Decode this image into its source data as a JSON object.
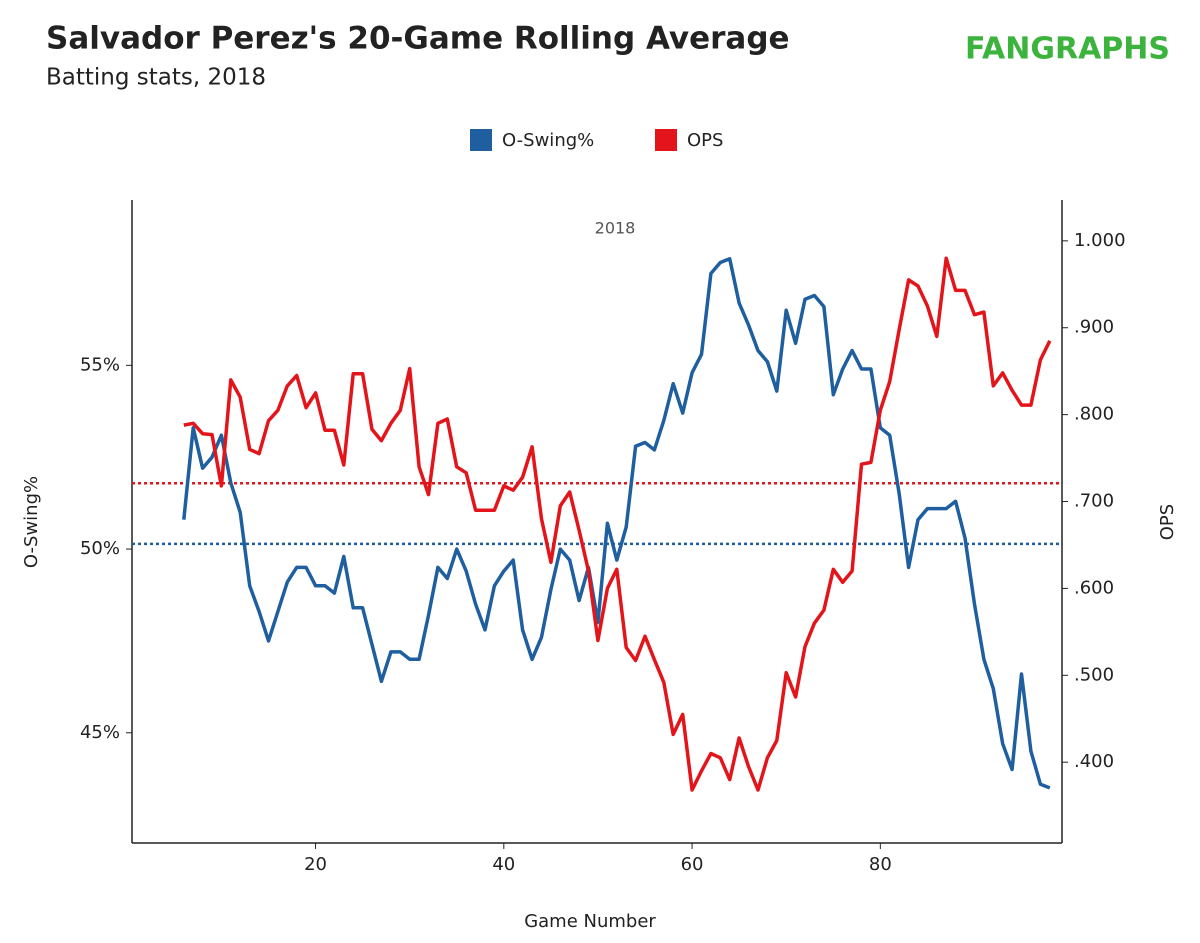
{
  "chart_data": {
    "type": "line",
    "title": "Salvador Perez's 20-Game Rolling Average",
    "subtitle": "Batting stats, 2018",
    "logo": "FANGRAPHS",
    "annotation": "2018",
    "x_label": "Game Number",
    "y_label": "O-Swing%",
    "y2_label": "OPS",
    "x": [
      6,
      7,
      8,
      9,
      10,
      11,
      12,
      13,
      14,
      15,
      16,
      17,
      18,
      19,
      20,
      21,
      22,
      23,
      24,
      25,
      26,
      27,
      28,
      29,
      30,
      31,
      32,
      33,
      34,
      35,
      36,
      37,
      38,
      39,
      40,
      41,
      42,
      43,
      44,
      45,
      46,
      47,
      48,
      49,
      50,
      51,
      52,
      53,
      54,
      55,
      56,
      57,
      58,
      59,
      60,
      61,
      62,
      63,
      64,
      65,
      66,
      67,
      68,
      69,
      70,
      71,
      72,
      73,
      74,
      75,
      76,
      77,
      78,
      79,
      80,
      81,
      82,
      83,
      84,
      85,
      86,
      87,
      88,
      89,
      90,
      91,
      92,
      93,
      94,
      95,
      96,
      97,
      98
    ],
    "series": [
      {
        "name": "O-Swing%",
        "color": "#1f5f9f",
        "axis": "y",
        "values": [
          50.8,
          53.3,
          52.2,
          52.5,
          53.1,
          51.8,
          51.0,
          49.0,
          48.3,
          47.5,
          48.3,
          49.1,
          49.5,
          49.5,
          49.0,
          49.0,
          48.8,
          49.8,
          48.4,
          48.4,
          47.4,
          46.4,
          47.2,
          47.2,
          47.0,
          47.0,
          48.2,
          49.5,
          49.2,
          50.0,
          49.4,
          48.5,
          47.8,
          49.0,
          49.4,
          49.7,
          47.8,
          47.0,
          47.6,
          48.9,
          50.0,
          49.7,
          48.6,
          49.5,
          48.0,
          50.7,
          49.7,
          50.6,
          52.8,
          52.9,
          52.7,
          53.5,
          54.5,
          53.7,
          54.8,
          55.3,
          57.5,
          57.8,
          57.9,
          56.7,
          56.1,
          55.4,
          55.1,
          54.3,
          56.5,
          55.6,
          56.8,
          56.9,
          56.6,
          54.2,
          54.9,
          55.4,
          54.9,
          54.9,
          53.3,
          53.1,
          51.5,
          49.5,
          50.8,
          51.1,
          51.1,
          51.1,
          51.3,
          50.3,
          48.5,
          47.0,
          46.2,
          44.7,
          44.0,
          46.6,
          44.5,
          43.6,
          43.5
        ]
      },
      {
        "name": "OPS",
        "color": "#e3151b",
        "axis": "y2",
        "values": [
          0.788,
          0.79,
          0.778,
          0.777,
          0.718,
          0.84,
          0.82,
          0.76,
          0.755,
          0.793,
          0.805,
          0.833,
          0.845,
          0.808,
          0.825,
          0.782,
          0.782,
          0.742,
          0.847,
          0.847,
          0.783,
          0.77,
          0.79,
          0.805,
          0.853,
          0.74,
          0.708,
          0.79,
          0.795,
          0.74,
          0.733,
          0.69,
          0.69,
          0.69,
          0.718,
          0.713,
          0.728,
          0.763,
          0.68,
          0.63,
          0.695,
          0.711,
          0.667,
          0.62,
          0.54,
          0.6,
          0.622,
          0.532,
          0.517,
          0.545,
          0.518,
          0.492,
          0.432,
          0.455,
          0.368,
          0.39,
          0.41,
          0.405,
          0.38,
          0.428,
          0.395,
          0.368,
          0.405,
          0.425,
          0.503,
          0.475,
          0.533,
          0.56,
          0.575,
          0.622,
          0.607,
          0.62,
          0.743,
          0.745,
          0.805,
          0.838,
          0.898,
          0.955,
          0.948,
          0.925,
          0.89,
          0.98,
          0.943,
          0.943,
          0.915,
          0.918,
          0.833,
          0.848,
          0.828,
          0.811,
          0.811,
          0.863,
          0.885
        ]
      }
    ],
    "reference_lines": [
      {
        "axis": "y",
        "value": 50.14,
        "color": "#1f5f9f"
      },
      {
        "axis": "y2",
        "value": 0.721,
        "color": "#e3151b"
      }
    ],
    "xlim": [
      0.5,
      99.3
    ],
    "xticks": [
      20,
      40,
      60,
      80
    ],
    "ylim": [
      42,
      59.5
    ],
    "yticks": [
      {
        "value": 45,
        "label": "45%"
      },
      {
        "value": 50,
        "label": "50%"
      },
      {
        "value": 55,
        "label": "55%"
      }
    ],
    "y2lim": [
      0.307,
      1.047
    ],
    "y2ticks": [
      {
        "value": 0.4,
        "label": ".400"
      },
      {
        "value": 0.5,
        "label": ".500"
      },
      {
        "value": 0.6,
        "label": ".600"
      },
      {
        "value": 0.7,
        "label": ".700"
      },
      {
        "value": 0.8,
        "label": ".800"
      },
      {
        "value": 0.9,
        "label": ".900"
      },
      {
        "value": 1,
        "label": "1.000"
      }
    ],
    "grid": false
  }
}
